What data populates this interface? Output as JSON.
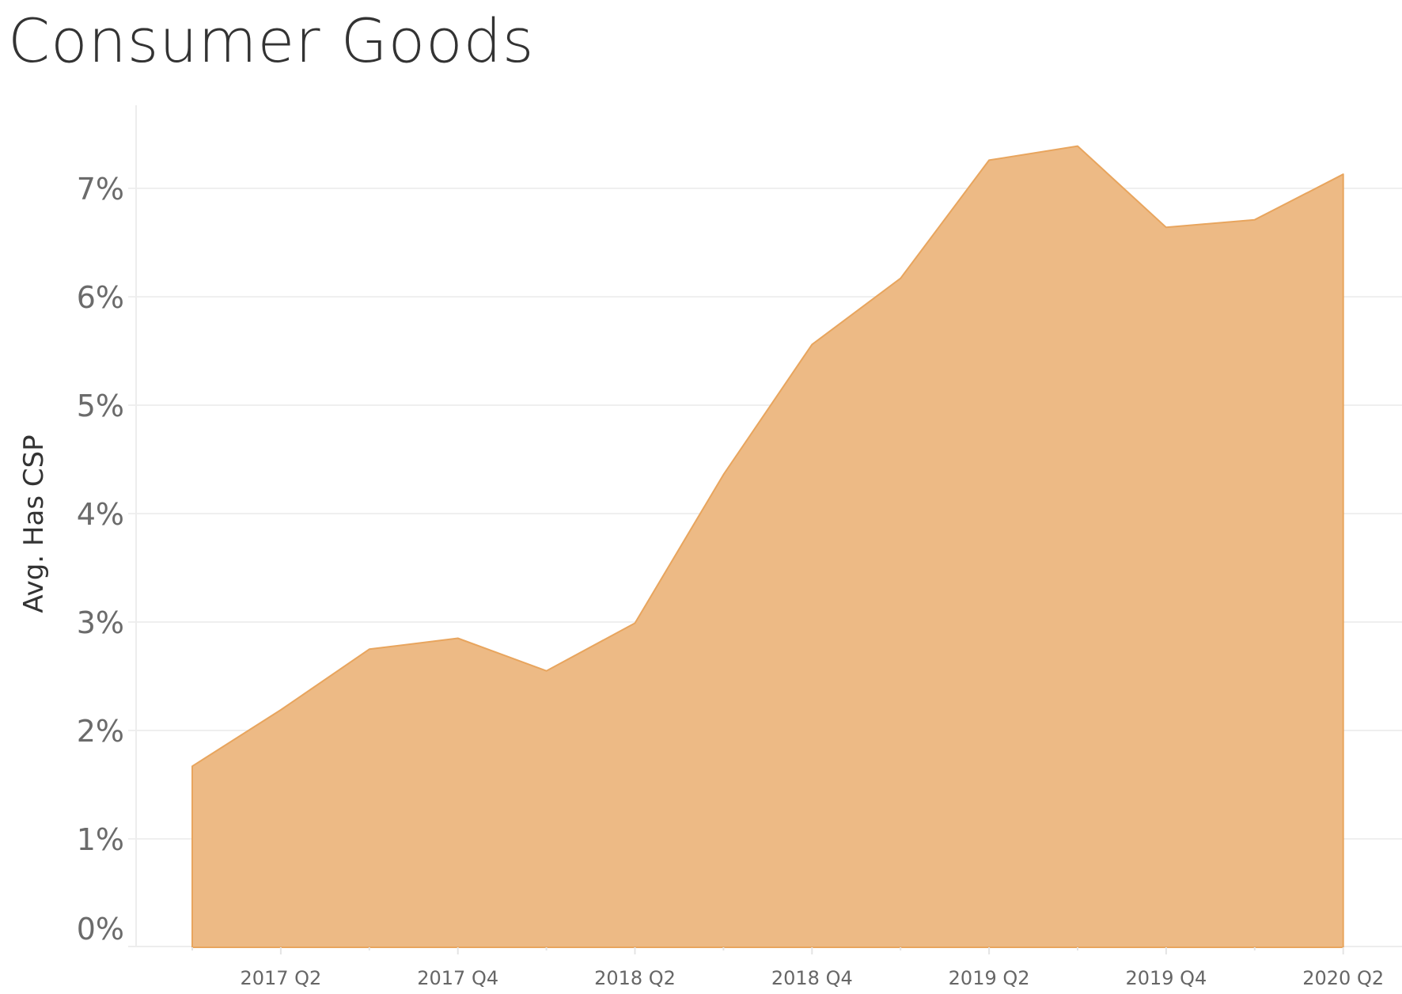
{
  "header": {
    "title": "Consumer Goods"
  },
  "chart_data": {
    "type": "area",
    "title": "Consumer Goods",
    "xlabel": "",
    "ylabel": "Avg. Has CSP",
    "x": [
      "2017 Q1",
      "2017 Q2",
      "2017 Q3",
      "2017 Q4",
      "2018 Q1",
      "2018 Q2",
      "2018 Q3",
      "2018 Q4",
      "2019 Q1",
      "2019 Q2",
      "2019 Q3",
      "2019 Q4",
      "2020 Q1",
      "2020 Q2"
    ],
    "series": [
      {
        "name": "Avg. Has CSP",
        "unit": "%",
        "values": [
          1.67,
          2.19,
          2.75,
          2.85,
          2.55,
          2.99,
          4.36,
          5.56,
          6.17,
          7.26,
          7.39,
          6.64,
          6.71,
          7.13
        ]
      }
    ],
    "x_tick_labels": [
      "2017 Q2",
      "2017 Q4",
      "2018 Q2",
      "2018 Q4",
      "2019 Q2",
      "2019 Q4",
      "2020 Q2"
    ],
    "y_tick_labels": [
      "0%",
      "1%",
      "2%",
      "3%",
      "4%",
      "5%",
      "6%",
      "7%"
    ],
    "y_ticks": [
      0,
      1,
      2,
      3,
      4,
      5,
      6,
      7
    ],
    "ylim": [
      0,
      7.7
    ],
    "grid": true,
    "legend": "none",
    "colors": {
      "fill": "#EDBA85",
      "stroke": "#E8A55E",
      "grid": "#EFEFEF",
      "axis": "#E6E6E6",
      "tick_text": "#666666",
      "title": "#333333"
    }
  }
}
